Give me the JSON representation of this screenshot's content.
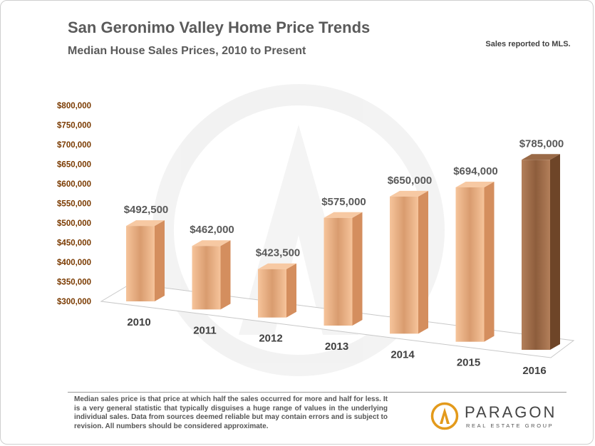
{
  "header": {
    "title": "San Geronimo Valley Home Price Trends",
    "subtitle": "Median House Sales Prices, 2010 to Present",
    "note": "Sales reported to MLS."
  },
  "footer": {
    "footnote": "Median sales price is that price at which half the sales occurred for more and half for less. It is a very general statistic that typically disguises a huge range of values in the underlying individual sales. Data from sources deemed reliable but may contain errors and is subject to revision. All numbers should be considered approximate."
  },
  "logo": {
    "name": "PARAGON",
    "tagline": "REAL ESTATE GROUP"
  },
  "colors": {
    "bar": "#f0b184",
    "bar_highlight": "#a7724f",
    "axis_tick": "#7a3a00",
    "data_label": "#595959",
    "category_label": "#404040",
    "logo_accent": "#e39a1b"
  },
  "chart_data": {
    "type": "bar",
    "categories": [
      "2010",
      "2011",
      "2012",
      "2013",
      "2014",
      "2015",
      "2016"
    ],
    "values": [
      492500,
      462000,
      423500,
      575000,
      650000,
      694000,
      785000
    ],
    "data_labels": [
      "$492,500",
      "$462,000",
      "$423,500",
      "$575,000",
      "$650,000",
      "$694,000",
      "$785,000"
    ],
    "y_ticks": [
      "$300,000",
      "$350,000",
      "$400,000",
      "$450,000",
      "$500,000",
      "$550,000",
      "$600,000",
      "$650,000",
      "$700,000",
      "$750,000",
      "$800,000"
    ],
    "ylim": [
      300000,
      800000
    ],
    "highlight_index": 6,
    "grid": false,
    "legend": "none",
    "style": "3d-perspective"
  }
}
